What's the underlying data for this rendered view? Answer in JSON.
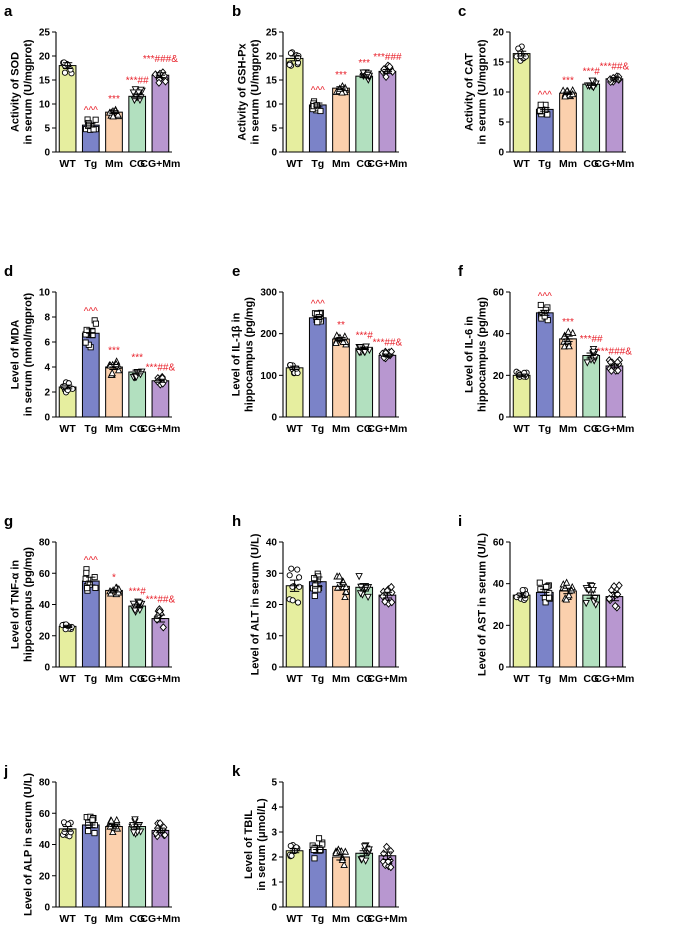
{
  "colors": {
    "WT": "#e6ee9f",
    "Tg": "#7b83c8",
    "Mm": "#fbd0ad",
    "CG": "#b2e0bf",
    "CG+Mm": "#b897d0",
    "significance": "#e8202a"
  },
  "chart_data": [
    {
      "type": "bar",
      "panel": "a",
      "ylabel": [
        "Activity of SOD",
        "in serum (U/mgprot)"
      ],
      "categories": [
        "WT",
        "Tg",
        "Mm",
        "CG",
        "CG+Mm"
      ],
      "values": [
        18.0,
        5.6,
        8.3,
        11.6,
        16.0
      ],
      "errors": [
        0.6,
        0.4,
        0.3,
        0.5,
        0.5
      ],
      "annotations": [
        "",
        "^^^",
        "***",
        "***##",
        "***###&"
      ],
      "ylim": [
        0,
        25
      ],
      "yticks": [
        0,
        5,
        10,
        15,
        20,
        25
      ],
      "markers": [
        "circle",
        "square",
        "triangle",
        "invtriangle",
        "diamond"
      ]
    },
    {
      "type": "bar",
      "panel": "b",
      "ylabel": [
        "Activity of GSH-Px",
        "in serum (U/mgprot)"
      ],
      "categories": [
        "WT",
        "Tg",
        "Mm",
        "CG",
        "CG+Mm"
      ],
      "values": [
        19.5,
        9.8,
        13.3,
        15.8,
        16.8
      ],
      "errors": [
        0.5,
        0.4,
        0.3,
        0.3,
        0.4
      ],
      "annotations": [
        "",
        "^^^",
        "***",
        "***",
        "***###"
      ],
      "ylim": [
        0,
        25
      ],
      "yticks": [
        0,
        5,
        10,
        15,
        20,
        25
      ]
    },
    {
      "type": "bar",
      "panel": "c",
      "ylabel": [
        "Activity of CAT",
        "in serum (U/mgprot)"
      ],
      "categories": [
        "WT",
        "Tg",
        "Mm",
        "CG",
        "CG+Mm"
      ],
      "values": [
        16.4,
        7.1,
        9.8,
        11.3,
        12.2
      ],
      "errors": [
        0.4,
        0.3,
        0.2,
        0.2,
        0.2
      ],
      "annotations": [
        "",
        "^^^",
        "***",
        "***#",
        "***##&"
      ],
      "ylim": [
        0,
        20
      ],
      "yticks": [
        0,
        5,
        10,
        15,
        20
      ]
    },
    {
      "type": "bar",
      "panel": "d",
      "ylabel": [
        "Level of MDA",
        "in serum (nmol/mgprot)"
      ],
      "categories": [
        "WT",
        "Tg",
        "Mm",
        "CG",
        "CG+Mm"
      ],
      "values": [
        2.4,
        6.7,
        4.0,
        3.6,
        2.9
      ],
      "errors": [
        0.15,
        0.35,
        0.2,
        0.15,
        0.12
      ],
      "annotations": [
        "",
        "^^^",
        "***",
        "***",
        "***##&"
      ],
      "ylim": [
        0,
        10
      ],
      "yticks": [
        0,
        2,
        4,
        6,
        8,
        10
      ]
    },
    {
      "type": "bar",
      "panel": "e",
      "ylabel": [
        "Level of IL-1β in",
        "hippocampus (pg/mg)"
      ],
      "categories": [
        "WT",
        "Tg",
        "Mm",
        "CG",
        "CG+Mm"
      ],
      "values": [
        118,
        238,
        187,
        165,
        148
      ],
      "errors": [
        4,
        4,
        4,
        3,
        3
      ],
      "annotations": [
        "",
        "^^^",
        "**",
        "***#",
        "***##&"
      ],
      "ylim": [
        0,
        300
      ],
      "yticks": [
        0,
        100,
        200,
        300
      ]
    },
    {
      "type": "bar",
      "panel": "f",
      "ylabel": [
        "Level of IL-6 in",
        "hippocampus (pg/mg)"
      ],
      "categories": [
        "WT",
        "Tg",
        "Mm",
        "CG",
        "CG+Mm"
      ],
      "values": [
        20,
        50,
        37.5,
        29.5,
        24.5
      ],
      "errors": [
        0.6,
        1.2,
        1.3,
        1.2,
        0.9
      ],
      "annotations": [
        "",
        "^^^",
        "***",
        "***##",
        "***###&"
      ],
      "ylim": [
        0,
        60
      ],
      "yticks": [
        0,
        20,
        40,
        60
      ]
    },
    {
      "type": "bar",
      "panel": "g",
      "ylabel": [
        "Level of TNF-α in",
        "hippocampus (pg/mg)"
      ],
      "categories": [
        "WT",
        "Tg",
        "Mm",
        "CG",
        "CG+Mm"
      ],
      "values": [
        26,
        55,
        49,
        39,
        31
      ],
      "errors": [
        0.7,
        2.5,
        0.9,
        1.2,
        2.2
      ],
      "annotations": [
        "",
        "^^^",
        "*",
        "***#",
        "***##&"
      ],
      "ylim": [
        0,
        80
      ],
      "yticks": [
        0,
        20,
        40,
        60,
        80
      ]
    },
    {
      "type": "bar",
      "panel": "h",
      "ylabel": [
        "Level of ALT in serum (U/L)"
      ],
      "categories": [
        "WT",
        "Tg",
        "Mm",
        "CG",
        "CG+Mm"
      ],
      "values": [
        26,
        27.3,
        25.8,
        25.5,
        23
      ],
      "errors": [
        1.8,
        1.5,
        1.2,
        1.2,
        0.9
      ],
      "annotations": [
        "",
        "",
        "",
        "",
        ""
      ],
      "ylim": [
        0,
        40
      ],
      "yticks": [
        0,
        10,
        20,
        30,
        40
      ]
    },
    {
      "type": "bar",
      "panel": "i",
      "ylabel": [
        "Level of AST in serum (U/L)"
      ],
      "categories": [
        "WT",
        "Tg",
        "Mm",
        "CG",
        "CG+Mm"
      ],
      "values": [
        34.5,
        35.8,
        36.5,
        34.5,
        33.8
      ],
      "errors": [
        1.0,
        1.5,
        1.3,
        1.5,
        2.0
      ],
      "annotations": [
        "",
        "",
        "",
        "",
        ""
      ],
      "ylim": [
        0,
        60
      ],
      "yticks": [
        0,
        20,
        40,
        60
      ]
    },
    {
      "type": "bar",
      "panel": "j",
      "ylabel": [
        "Level of ALP in serum (U/L)"
      ],
      "categories": [
        "WT",
        "Tg",
        "Mm",
        "CG",
        "CG+Mm"
      ],
      "values": [
        50,
        52.5,
        51.5,
        51.5,
        49
      ],
      "errors": [
        1.5,
        1.7,
        1.5,
        1.5,
        1.5
      ],
      "annotations": [
        "",
        "",
        "",
        "",
        ""
      ],
      "ylim": [
        0,
        80
      ],
      "yticks": [
        0,
        20,
        40,
        60,
        80
      ]
    },
    {
      "type": "bar",
      "panel": "k",
      "ylabel": [
        "Level of TBIL",
        "in serum (μmol/L)"
      ],
      "categories": [
        "WT",
        "Tg",
        "Mm",
        "CG",
        "CG+Mm"
      ],
      "values": [
        2.25,
        2.3,
        2.0,
        2.15,
        2.05
      ],
      "errors": [
        0.08,
        0.15,
        0.12,
        0.1,
        0.15
      ],
      "annotations": [
        "",
        "",
        "",
        "",
        ""
      ],
      "ylim": [
        0,
        5
      ],
      "yticks": [
        0,
        1,
        2,
        3,
        4,
        5
      ]
    }
  ]
}
